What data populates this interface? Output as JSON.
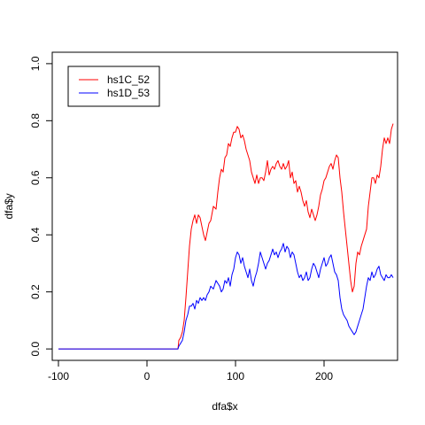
{
  "chart_data": {
    "type": "line",
    "xlabel": "dfa$x",
    "ylabel": "dfa$y",
    "xlim": [
      -107,
      283
    ],
    "ylim": [
      -0.04,
      1.04
    ],
    "xticks": [
      -100,
      0,
      100,
      200
    ],
    "xtick_labels": [
      "-100",
      "0",
      "100",
      "200"
    ],
    "yticks": [
      0.0,
      0.2,
      0.4,
      0.6,
      0.8,
      1.0
    ],
    "ytick_labels": [
      "0.0",
      "0.2",
      "0.4",
      "0.6",
      "0.8",
      "1.0"
    ],
    "legend_position": "top-left",
    "grid": false,
    "series": [
      {
        "name": "hs1C_52",
        "color": "#ff0000",
        "x": [
          -100,
          35,
          36,
          38,
          40,
          42,
          44,
          46,
          48,
          50,
          52,
          54,
          56,
          58,
          60,
          62,
          64,
          66,
          68,
          70,
          72,
          75,
          78,
          80,
          82,
          84,
          86,
          88,
          90,
          92,
          94,
          96,
          98,
          100,
          102,
          104,
          106,
          108,
          110,
          112,
          114,
          116,
          118,
          120,
          122,
          124,
          126,
          128,
          130,
          132,
          134,
          136,
          138,
          140,
          142,
          144,
          146,
          148,
          150,
          152,
          154,
          156,
          158,
          160,
          162,
          164,
          166,
          168,
          170,
          172,
          174,
          176,
          178,
          180,
          182,
          184,
          186,
          188,
          190,
          192,
          194,
          196,
          198,
          200,
          202,
          204,
          206,
          208,
          210,
          212,
          214,
          216,
          218,
          220,
          222,
          224,
          226,
          228,
          230,
          232,
          234,
          236,
          238,
          240,
          242,
          244,
          246,
          248,
          250,
          252,
          254,
          256,
          258,
          260,
          262,
          264,
          266,
          268,
          270,
          272,
          274,
          276,
          278
        ],
        "y": [
          0.0,
          0.0,
          0.03,
          0.04,
          0.06,
          0.1,
          0.18,
          0.27,
          0.36,
          0.42,
          0.45,
          0.47,
          0.44,
          0.47,
          0.46,
          0.43,
          0.4,
          0.38,
          0.41,
          0.44,
          0.45,
          0.5,
          0.49,
          0.55,
          0.6,
          0.63,
          0.62,
          0.67,
          0.68,
          0.72,
          0.71,
          0.74,
          0.76,
          0.76,
          0.78,
          0.77,
          0.74,
          0.75,
          0.73,
          0.7,
          0.68,
          0.66,
          0.62,
          0.6,
          0.58,
          0.61,
          0.58,
          0.6,
          0.6,
          0.59,
          0.62,
          0.66,
          0.61,
          0.63,
          0.64,
          0.63,
          0.65,
          0.66,
          0.64,
          0.63,
          0.65,
          0.63,
          0.64,
          0.66,
          0.6,
          0.62,
          0.58,
          0.59,
          0.55,
          0.57,
          0.55,
          0.52,
          0.5,
          0.52,
          0.48,
          0.46,
          0.49,
          0.47,
          0.45,
          0.47,
          0.5,
          0.54,
          0.56,
          0.59,
          0.6,
          0.62,
          0.64,
          0.65,
          0.63,
          0.66,
          0.68,
          0.67,
          0.6,
          0.55,
          0.48,
          0.42,
          0.36,
          0.3,
          0.24,
          0.2,
          0.22,
          0.3,
          0.34,
          0.33,
          0.36,
          0.38,
          0.4,
          0.42,
          0.5,
          0.55,
          0.6,
          0.6,
          0.58,
          0.61,
          0.6,
          0.64,
          0.7,
          0.74,
          0.72,
          0.74,
          0.72,
          0.77,
          0.79
        ]
      },
      {
        "name": "hs1D_53",
        "color": "#0000ff",
        "x": [
          -100,
          35,
          36,
          38,
          40,
          42,
          44,
          46,
          48,
          50,
          52,
          54,
          56,
          58,
          60,
          62,
          64,
          66,
          68,
          70,
          72,
          75,
          78,
          80,
          82,
          84,
          86,
          88,
          90,
          92,
          94,
          96,
          98,
          100,
          102,
          104,
          106,
          108,
          110,
          112,
          114,
          116,
          118,
          120,
          122,
          124,
          126,
          128,
          130,
          132,
          134,
          136,
          138,
          140,
          142,
          144,
          146,
          148,
          150,
          152,
          154,
          156,
          158,
          160,
          162,
          164,
          166,
          168,
          170,
          172,
          174,
          176,
          178,
          180,
          182,
          184,
          186,
          188,
          190,
          192,
          194,
          196,
          198,
          200,
          202,
          204,
          206,
          208,
          210,
          212,
          214,
          216,
          218,
          220,
          222,
          224,
          226,
          228,
          230,
          232,
          234,
          236,
          238,
          240,
          242,
          244,
          246,
          248,
          250,
          252,
          254,
          256,
          258,
          260,
          262,
          264,
          266,
          268,
          270,
          272,
          274,
          276,
          278
        ],
        "y": [
          0.0,
          0.0,
          0.01,
          0.02,
          0.03,
          0.06,
          0.1,
          0.12,
          0.15,
          0.15,
          0.16,
          0.14,
          0.17,
          0.16,
          0.18,
          0.17,
          0.18,
          0.17,
          0.19,
          0.2,
          0.22,
          0.21,
          0.24,
          0.23,
          0.22,
          0.2,
          0.21,
          0.24,
          0.23,
          0.25,
          0.22,
          0.26,
          0.28,
          0.32,
          0.34,
          0.33,
          0.3,
          0.32,
          0.29,
          0.27,
          0.25,
          0.28,
          0.24,
          0.22,
          0.25,
          0.27,
          0.3,
          0.34,
          0.32,
          0.3,
          0.28,
          0.3,
          0.31,
          0.33,
          0.35,
          0.33,
          0.34,
          0.32,
          0.34,
          0.35,
          0.37,
          0.34,
          0.36,
          0.35,
          0.32,
          0.34,
          0.33,
          0.3,
          0.27,
          0.25,
          0.26,
          0.24,
          0.25,
          0.27,
          0.24,
          0.25,
          0.28,
          0.3,
          0.29,
          0.27,
          0.25,
          0.28,
          0.3,
          0.32,
          0.29,
          0.3,
          0.32,
          0.33,
          0.3,
          0.27,
          0.26,
          0.24,
          0.18,
          0.14,
          0.12,
          0.11,
          0.1,
          0.08,
          0.07,
          0.06,
          0.05,
          0.06,
          0.08,
          0.1,
          0.12,
          0.14,
          0.18,
          0.22,
          0.25,
          0.24,
          0.27,
          0.25,
          0.26,
          0.28,
          0.29,
          0.26,
          0.25,
          0.24,
          0.26,
          0.25,
          0.25,
          0.26,
          0.25
        ]
      }
    ]
  }
}
